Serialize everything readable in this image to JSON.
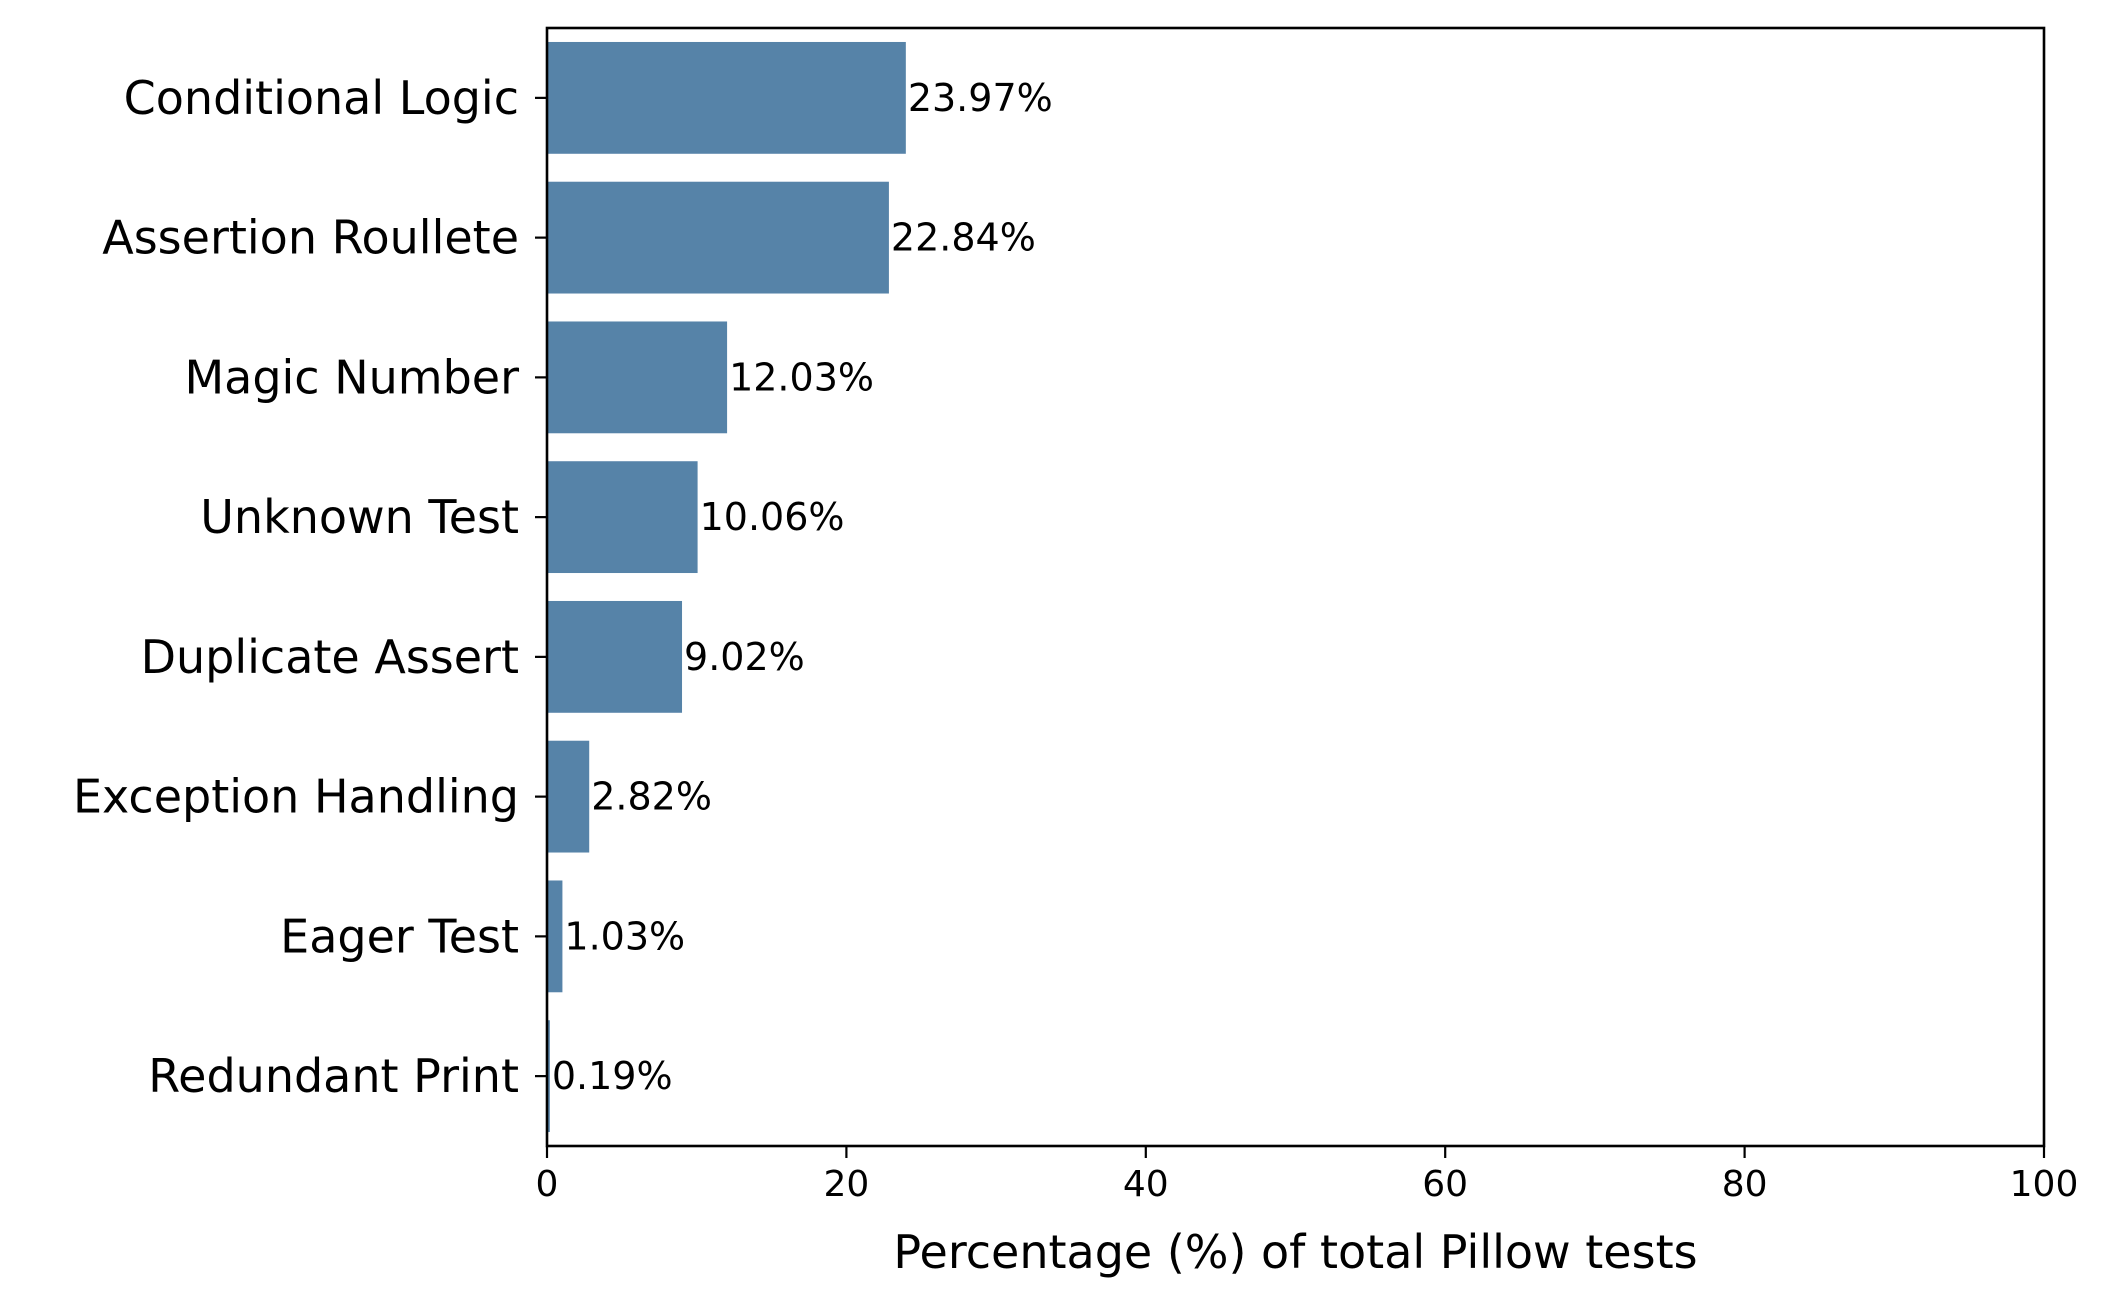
{
  "chart_data": {
    "type": "bar",
    "orientation": "horizontal",
    "title": "",
    "xlabel": "Percentage (%) of total Pillow tests",
    "ylabel": "",
    "xlim": [
      0,
      100
    ],
    "xticks": [
      0,
      20,
      40,
      60,
      80,
      100
    ],
    "xtick_labels": [
      "0",
      "20",
      "40",
      "60",
      "80",
      "100"
    ],
    "grid": false,
    "legend": null,
    "bar_color": "#5683A8",
    "categories": [
      "Conditional Logic",
      "Assertion Roullete",
      "Magic Number",
      "Unknown Test",
      "Duplicate Assert",
      "Exception Handling",
      "Eager Test",
      "Redundant Print"
    ],
    "values": [
      23.97,
      22.84,
      12.03,
      10.06,
      9.02,
      2.82,
      1.03,
      0.19
    ],
    "data_labels": [
      "23.97%",
      "22.84%",
      "12.03%",
      "10.06%",
      "9.02%",
      "2.82%",
      "1.03%",
      "0.19%"
    ]
  }
}
